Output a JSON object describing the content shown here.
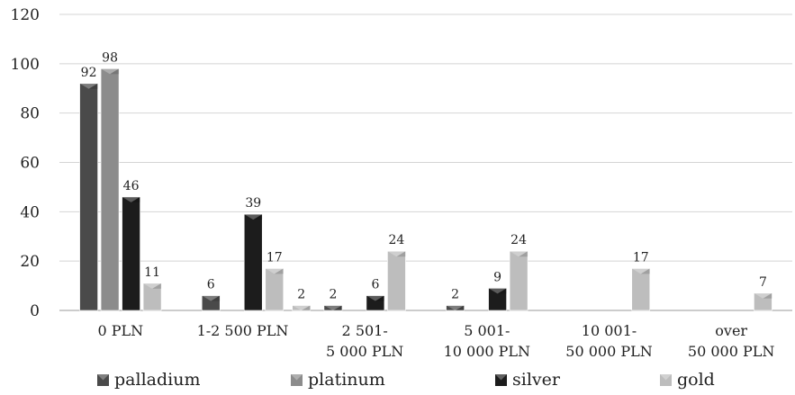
{
  "chart_data": {
    "type": "bar",
    "categories": [
      [
        "0 PLN"
      ],
      [
        "1-2 500 PLN"
      ],
      [
        "2 501-",
        "5 000 PLN"
      ],
      [
        "5 001-",
        "10 000 PLN"
      ],
      [
        "10 001-",
        "50 000 PLN"
      ],
      [
        "over",
        "50 000 PLN"
      ]
    ],
    "series": [
      {
        "name": "palladium",
        "color": "#4a4a4a",
        "values": [
          92,
          6,
          2,
          2,
          null,
          null
        ],
        "labels": [
          "92",
          "6",
          "2",
          "2",
          "",
          ""
        ]
      },
      {
        "name": "platinum",
        "color": "#8c8c8c",
        "values": [
          98,
          null,
          null,
          null,
          null,
          null
        ],
        "labels": [
          "98",
          "",
          "",
          "",
          "",
          ""
        ]
      },
      {
        "name": "silver",
        "color": "#1c1c1c",
        "values": [
          46,
          39,
          6,
          9,
          null,
          null
        ],
        "labels": [
          "46",
          "39",
          "6",
          "9",
          "",
          ""
        ]
      },
      {
        "name": "gold",
        "color": "#bdbdbd",
        "values": [
          11,
          17,
          24,
          24,
          17,
          7
        ],
        "labels": [
          "11",
          "17",
          "24",
          "24",
          "17",
          "7"
        ]
      }
    ],
    "gold_first_labels": [
      "2",
      "",
      "",
      "",
      "",
      ""
    ],
    "ylim": [
      0,
      120
    ],
    "yticks": [
      "0",
      "20",
      "40",
      "60",
      "80",
      "100",
      "120"
    ],
    "grid": true,
    "legend": "bottom"
  }
}
